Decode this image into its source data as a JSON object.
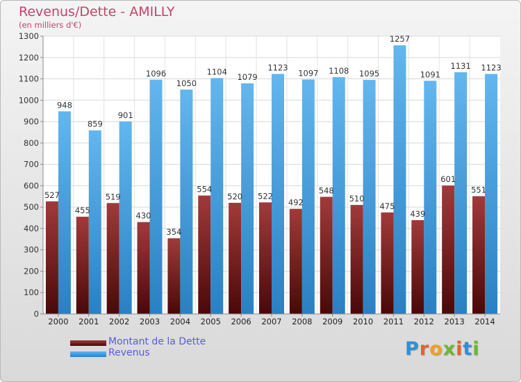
{
  "chart_data": {
    "type": "bar",
    "title": "Revenus/Dette - AMILLY",
    "subtitle": "(en milliers d'€)",
    "categories": [
      "2000",
      "2001",
      "2002",
      "2003",
      "2004",
      "2005",
      "2006",
      "2007",
      "2008",
      "2009",
      "2010",
      "2011",
      "2012",
      "2013",
      "2014"
    ],
    "series": [
      {
        "name": "Montant de la Dette",
        "color": "#7a1e1e",
        "values": [
          527,
          455,
          519,
          430,
          354,
          554,
          520,
          522,
          492,
          548,
          510,
          475,
          439,
          601,
          551
        ]
      },
      {
        "name": "Revenus",
        "color": "#3c9ee0",
        "values": [
          948,
          859,
          901,
          1096,
          1050,
          1104,
          1079,
          1123,
          1097,
          1108,
          1095,
          1257,
          1091,
          1131,
          1123
        ]
      }
    ],
    "ylim": [
      0,
      1300
    ],
    "yticks": [
      0,
      100,
      200,
      300,
      400,
      500,
      600,
      700,
      800,
      900,
      1000,
      1100,
      1200,
      1300
    ],
    "grid": true,
    "legend_position": "bottom-left"
  },
  "branding": {
    "logo_text": "Proxiti",
    "letter_colors": [
      "#2f8fd6",
      "#e8602c",
      "#f0a020",
      "#6ab82e",
      "#e8602c",
      "#2f8fd6",
      "#6ab82e"
    ]
  }
}
